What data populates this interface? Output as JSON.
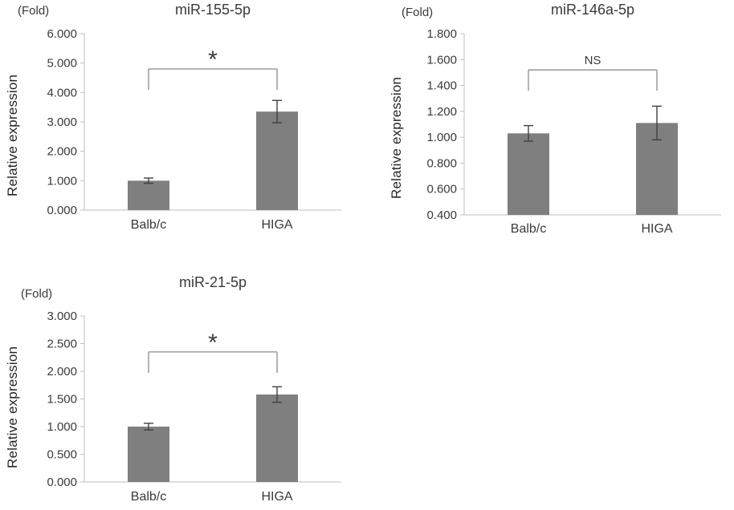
{
  "background": "#ffffff",
  "chart_data": [
    {
      "type": "bar",
      "title": "miR-155-5p",
      "ylabel": "Relative expression",
      "axis_unit": "(Fold)",
      "categories": [
        "Balb/c",
        "HIGA"
      ],
      "values": [
        1.0,
        3.35
      ],
      "errors": [
        0.09,
        0.38
      ],
      "ylim": [
        0,
        6
      ],
      "ytick_values": [
        0,
        1,
        2,
        3,
        4,
        5,
        6
      ],
      "ytick_labels": [
        "0.000",
        "1.000",
        "2.000",
        "3.000",
        "4.000",
        "5.000",
        "6.000"
      ],
      "grid": false,
      "legend": null,
      "bar_color": "#7f7f7f",
      "significance": {
        "label": "*",
        "between": [
          "Balb/c",
          "HIGA"
        ],
        "bracket_y": 4.8
      }
    },
    {
      "type": "bar",
      "title": "miR-146a-5p",
      "ylabel": "Relative expression",
      "axis_unit": "(Fold)",
      "categories": [
        "Balb/c",
        "HIGA"
      ],
      "values": [
        1.03,
        1.11
      ],
      "errors": [
        0.06,
        0.13
      ],
      "ylim": [
        0.4,
        1.8
      ],
      "ytick_values": [
        0.4,
        0.6,
        0.8,
        1.0,
        1.2,
        1.4,
        1.6,
        1.8
      ],
      "ytick_labels": [
        "0.400",
        "0.600",
        "0.800",
        "1.000",
        "1.200",
        "1.400",
        "1.600",
        "1.800"
      ],
      "grid": false,
      "legend": null,
      "bar_color": "#7f7f7f",
      "significance": {
        "label": "NS",
        "between": [
          "Balb/c",
          "HIGA"
        ],
        "bracket_y": 1.52
      }
    },
    {
      "type": "bar",
      "title": "miR-21-5p",
      "ylabel": "Relative expression",
      "axis_unit": "(Fold)",
      "categories": [
        "Balb/c",
        "HIGA"
      ],
      "values": [
        1.0,
        1.58
      ],
      "errors": [
        0.06,
        0.14
      ],
      "ylim": [
        0,
        3
      ],
      "ytick_values": [
        0,
        0.5,
        1.0,
        1.5,
        2.0,
        2.5,
        3.0
      ],
      "ytick_labels": [
        "0.000",
        "0.500",
        "1.000",
        "1.500",
        "2.000",
        "2.500",
        "3.000"
      ],
      "grid": false,
      "legend": null,
      "bar_color": "#7f7f7f",
      "significance": {
        "label": "*",
        "between": [
          "Balb/c",
          "HIGA"
        ],
        "bracket_y": 2.35
      }
    }
  ]
}
